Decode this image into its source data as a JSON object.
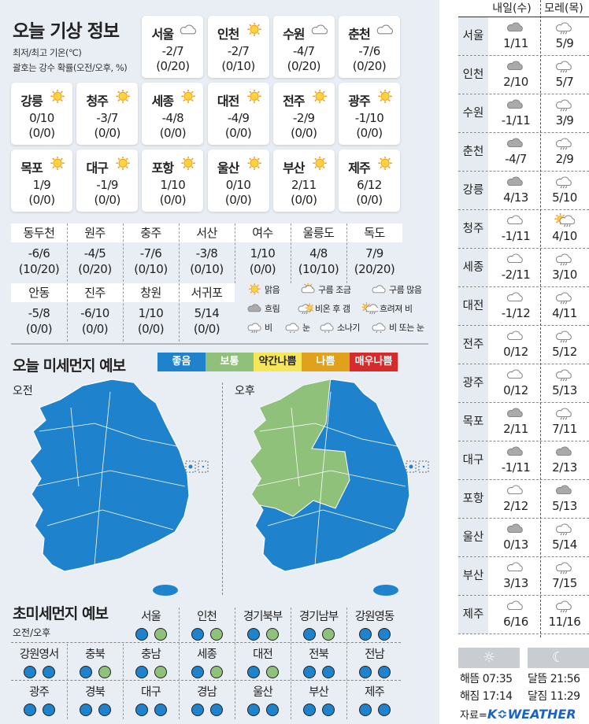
{
  "today": {
    "title": "오늘 기상 정보",
    "legend_lines": [
      "최저/최고 기온(℃)",
      "괄호는 강수 확률(오전/오후, %)"
    ],
    "cities": [
      {
        "name": "서울",
        "icon": "cloud",
        "temp": "-2/7",
        "rain": "(0/20)"
      },
      {
        "name": "인천",
        "icon": "sun",
        "temp": "-2/7",
        "rain": "(0/10)"
      },
      {
        "name": "수원",
        "icon": "cloud",
        "temp": "-4/7",
        "rain": "(0/20)"
      },
      {
        "name": "춘천",
        "icon": "cloud",
        "temp": "-7/6",
        "rain": "(0/20)"
      },
      {
        "name": "강릉",
        "icon": "sun",
        "temp": "0/10",
        "rain": "(0/0)"
      },
      {
        "name": "청주",
        "icon": "sun",
        "temp": "-3/7",
        "rain": "(0/0)"
      },
      {
        "name": "세종",
        "icon": "sun",
        "temp": "-4/8",
        "rain": "(0/0)"
      },
      {
        "name": "대전",
        "icon": "sun",
        "temp": "-4/9",
        "rain": "(0/0)"
      },
      {
        "name": "전주",
        "icon": "sun",
        "temp": "-2/9",
        "rain": "(0/0)"
      },
      {
        "name": "광주",
        "icon": "sun",
        "temp": "-1/10",
        "rain": "(0/0)"
      },
      {
        "name": "목포",
        "icon": "sun",
        "temp": "1/9",
        "rain": "(0/0)"
      },
      {
        "name": "대구",
        "icon": "sun",
        "temp": "-1/9",
        "rain": "(0/0)"
      },
      {
        "name": "포항",
        "icon": "sun",
        "temp": "1/10",
        "rain": "(0/0)"
      },
      {
        "name": "울산",
        "icon": "sun",
        "temp": "0/10",
        "rain": "(0/0)"
      },
      {
        "name": "부산",
        "icon": "sun",
        "temp": "2/11",
        "rain": "(0/0)"
      },
      {
        "name": "제주",
        "icon": "sun",
        "temp": "6/12",
        "rain": "(0/0)"
      }
    ]
  },
  "other_cities": [
    {
      "name": "동두천",
      "temp": "-6/6",
      "rain": "(10/20)"
    },
    {
      "name": "원주",
      "temp": "-4/5",
      "rain": "(0/20)"
    },
    {
      "name": "충주",
      "temp": "-7/6",
      "rain": "(0/10)"
    },
    {
      "name": "서산",
      "temp": "-3/8",
      "rain": "(0/10)"
    },
    {
      "name": "여수",
      "temp": "1/10",
      "rain": "(0/0)"
    },
    {
      "name": "울릉도",
      "temp": "4/8",
      "rain": "(10/10)"
    },
    {
      "name": "독도",
      "temp": "7/9",
      "rain": "(20/20)"
    },
    {
      "name": "안동",
      "temp": "-5/8",
      "rain": "(0/0)"
    },
    {
      "name": "진주",
      "temp": "-6/10",
      "rain": "(0/0)"
    },
    {
      "name": "창원",
      "temp": "1/10",
      "rain": "(0/0)"
    },
    {
      "name": "서귀포",
      "temp": "5/14",
      "rain": "(0/0)"
    }
  ],
  "weather_legend": [
    {
      "icon": "sun",
      "label": "맑음"
    },
    {
      "icon": "partly",
      "label": "구름 조금"
    },
    {
      "icon": "cloud",
      "label": "구름 많음"
    },
    {
      "icon": "dark",
      "label": "흐림"
    },
    {
      "icon": "clearing",
      "label": "비온 후 갬"
    },
    {
      "icon": "sunrain",
      "label": "흐려져 비"
    },
    {
      "icon": "rain",
      "label": "비"
    },
    {
      "icon": "snow",
      "label": "눈"
    },
    {
      "icon": "shower",
      "label": "소나기"
    },
    {
      "icon": "sleet",
      "label": "비 또는 눈"
    }
  ],
  "dust": {
    "title": "오늘 미세먼지 예보",
    "am_label": "오전",
    "pm_label": "오후",
    "levels": [
      {
        "label": "좋음",
        "color": "#1f82cc"
      },
      {
        "label": "보통",
        "color": "#8fc17a"
      },
      {
        "label": "약간나쁨",
        "color": "#f5e65a"
      },
      {
        "label": "나쁨",
        "color": "#e0a21c"
      },
      {
        "label": "매우나쁨",
        "color": "#d62b2b"
      }
    ],
    "map_am": {
      "전국": "좋음"
    },
    "map_pm": {
      "수도권·충청": "보통",
      "기타": "좋음"
    }
  },
  "ultrafine": {
    "title": "초미세먼지 예보",
    "subtitle": "오전/오후",
    "regions": [
      {
        "name": "서울",
        "am": "좋음",
        "pm": "보통"
      },
      {
        "name": "인천",
        "am": "좋음",
        "pm": "보통"
      },
      {
        "name": "경기북부",
        "am": "좋음",
        "pm": "보통"
      },
      {
        "name": "경기남부",
        "am": "좋음",
        "pm": "보통"
      },
      {
        "name": "강원영동",
        "am": "좋음",
        "pm": "좋음"
      },
      {
        "name": "강원영서",
        "am": "좋음",
        "pm": "좋음"
      },
      {
        "name": "충북",
        "am": "좋음",
        "pm": "보통"
      },
      {
        "name": "충남",
        "am": "좋음",
        "pm": "보통"
      },
      {
        "name": "세종",
        "am": "좋음",
        "pm": "보통"
      },
      {
        "name": "대전",
        "am": "좋음",
        "pm": "보통"
      },
      {
        "name": "전북",
        "am": "좋음",
        "pm": "좋음"
      },
      {
        "name": "전남",
        "am": "좋음",
        "pm": "좋음"
      },
      {
        "name": "광주",
        "am": "좋음",
        "pm": "좋음"
      },
      {
        "name": "경북",
        "am": "좋음",
        "pm": "좋음"
      },
      {
        "name": "대구",
        "am": "좋음",
        "pm": "좋음"
      },
      {
        "name": "경남",
        "am": "좋음",
        "pm": "좋음"
      },
      {
        "name": "울산",
        "am": "좋음",
        "pm": "좋음"
      },
      {
        "name": "부산",
        "am": "좋음",
        "pm": "좋음"
      },
      {
        "name": "제주",
        "am": "좋음",
        "pm": "좋음"
      }
    ]
  },
  "forecast": {
    "headers": [
      "내일(수)",
      "모레(목)"
    ],
    "rows": [
      {
        "name": "서울",
        "d1": {
          "icon": "dark",
          "temp": "1/11"
        },
        "d2": {
          "icon": "rain",
          "temp": "5/9"
        }
      },
      {
        "name": "인천",
        "d1": {
          "icon": "dark",
          "temp": "2/10"
        },
        "d2": {
          "icon": "rain",
          "temp": "5/7"
        }
      },
      {
        "name": "수원",
        "d1": {
          "icon": "dark",
          "temp": "-1/11"
        },
        "d2": {
          "icon": "rain",
          "temp": "3/9"
        }
      },
      {
        "name": "춘천",
        "d1": {
          "icon": "dark",
          "temp": "-4/7"
        },
        "d2": {
          "icon": "rain",
          "temp": "2/9"
        }
      },
      {
        "name": "강릉",
        "d1": {
          "icon": "dark",
          "temp": "4/13"
        },
        "d2": {
          "icon": "rain",
          "temp": "5/10"
        }
      },
      {
        "name": "청주",
        "d1": {
          "icon": "cloud",
          "temp": "-1/11"
        },
        "d2": {
          "icon": "sunrain",
          "temp": "4/10"
        }
      },
      {
        "name": "세종",
        "d1": {
          "icon": "cloud",
          "temp": "-2/11"
        },
        "d2": {
          "icon": "rain",
          "temp": "3/10"
        }
      },
      {
        "name": "대전",
        "d1": {
          "icon": "cloud",
          "temp": "-1/12"
        },
        "d2": {
          "icon": "rain",
          "temp": "4/11"
        }
      },
      {
        "name": "전주",
        "d1": {
          "icon": "cloud",
          "temp": "0/12"
        },
        "d2": {
          "icon": "rain",
          "temp": "5/12"
        }
      },
      {
        "name": "광주",
        "d1": {
          "icon": "cloud",
          "temp": "0/12"
        },
        "d2": {
          "icon": "rain",
          "temp": "5/13"
        }
      },
      {
        "name": "목포",
        "d1": {
          "icon": "dark",
          "temp": "2/11"
        },
        "d2": {
          "icon": "rain",
          "temp": "7/11"
        }
      },
      {
        "name": "대구",
        "d1": {
          "icon": "dark",
          "temp": "-1/11"
        },
        "d2": {
          "icon": "dark",
          "temp": "2/13"
        }
      },
      {
        "name": "포항",
        "d1": {
          "icon": "cloud",
          "temp": "2/12"
        },
        "d2": {
          "icon": "dark",
          "temp": "5/13"
        }
      },
      {
        "name": "울산",
        "d1": {
          "icon": "dark",
          "temp": "0/13"
        },
        "d2": {
          "icon": "rain",
          "temp": "5/14"
        }
      },
      {
        "name": "부산",
        "d1": {
          "icon": "cloud",
          "temp": "3/13"
        },
        "d2": {
          "icon": "rain",
          "temp": "7/15"
        }
      },
      {
        "name": "제주",
        "d1": {
          "icon": "cloud",
          "temp": "6/16"
        },
        "d2": {
          "icon": "rain",
          "temp": "11/16"
        }
      }
    ]
  },
  "sun_moon": {
    "sunrise": "해뜸 07:35",
    "sunset": "해짐 17:14",
    "moonrise": "달뜸 21:56",
    "moonset": "달짐 11:29",
    "sun_icon": "sun-outline-icon",
    "moon_icon": "crescent-moon-icon"
  },
  "source": {
    "prefix": "자료=",
    "logo": "K≎WEATHER"
  }
}
